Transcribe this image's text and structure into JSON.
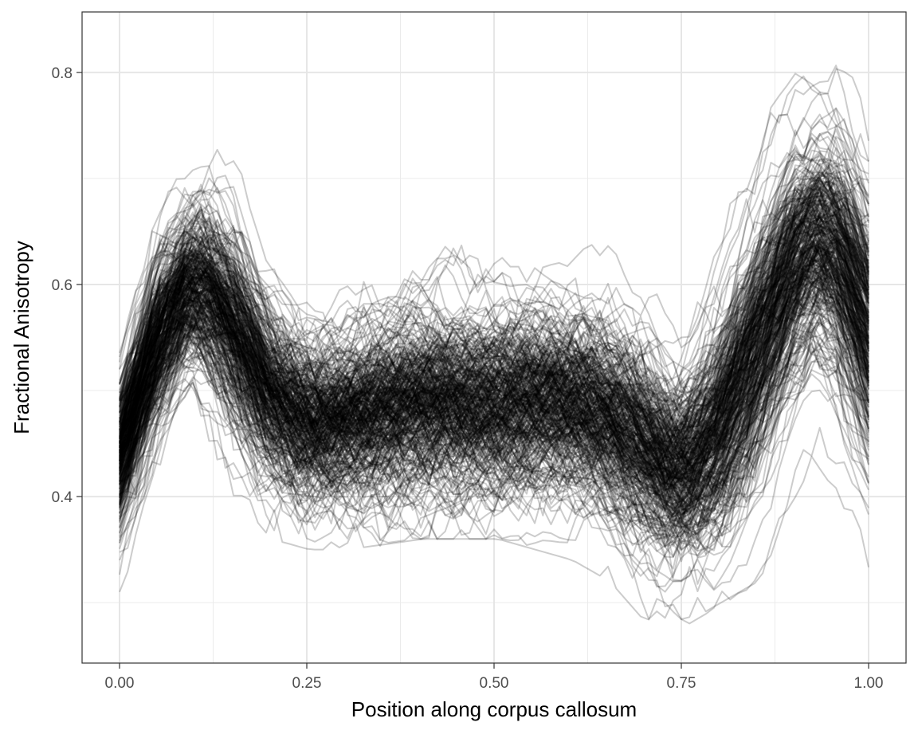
{
  "chart_data": {
    "type": "line",
    "title": "",
    "xlabel": "Position along corpus callosum",
    "ylabel": "Fractional Anisotropy",
    "xlim": [
      -0.05,
      1.05
    ],
    "ylim": [
      0.243,
      0.857
    ],
    "x_ticks": [
      0.0,
      0.25,
      0.5,
      0.75,
      1.0
    ],
    "x_tick_labels": [
      "0.00",
      "0.25",
      "0.50",
      "0.75",
      "1.00"
    ],
    "y_ticks": [
      0.4,
      0.6,
      0.8
    ],
    "y_tick_labels": [
      "0.4",
      "0.6",
      "0.8"
    ],
    "grid": true,
    "legend": "none",
    "line_color": "#000000",
    "line_opacity": 0.2,
    "n_curves": 382,
    "n_points_per_curve": 93,
    "x_range": [
      0,
      1
    ],
    "mean_profile": {
      "x": [
        0.0,
        0.05,
        0.09,
        0.12,
        0.15,
        0.2,
        0.25,
        0.3,
        0.4,
        0.5,
        0.6,
        0.65,
        0.7,
        0.75,
        0.8,
        0.85,
        0.9,
        0.93,
        0.96,
        1.0
      ],
      "y": [
        0.44,
        0.55,
        0.6,
        0.595,
        0.565,
        0.5,
        0.47,
        0.475,
        0.49,
        0.49,
        0.49,
        0.48,
        0.45,
        0.42,
        0.46,
        0.54,
        0.62,
        0.645,
        0.63,
        0.56
      ]
    },
    "typical_band": {
      "lower": [
        0.33,
        0.42,
        0.5,
        0.47,
        0.42,
        0.38,
        0.37,
        0.37,
        0.38,
        0.38,
        0.36,
        0.34,
        0.3,
        0.3,
        0.32,
        0.34,
        0.4,
        0.45,
        0.42,
        0.33
      ],
      "upper": [
        0.58,
        0.67,
        0.72,
        0.73,
        0.72,
        0.63,
        0.6,
        0.62,
        0.66,
        0.67,
        0.64,
        0.63,
        0.61,
        0.56,
        0.66,
        0.74,
        0.77,
        0.79,
        0.8,
        0.75
      ]
    }
  }
}
